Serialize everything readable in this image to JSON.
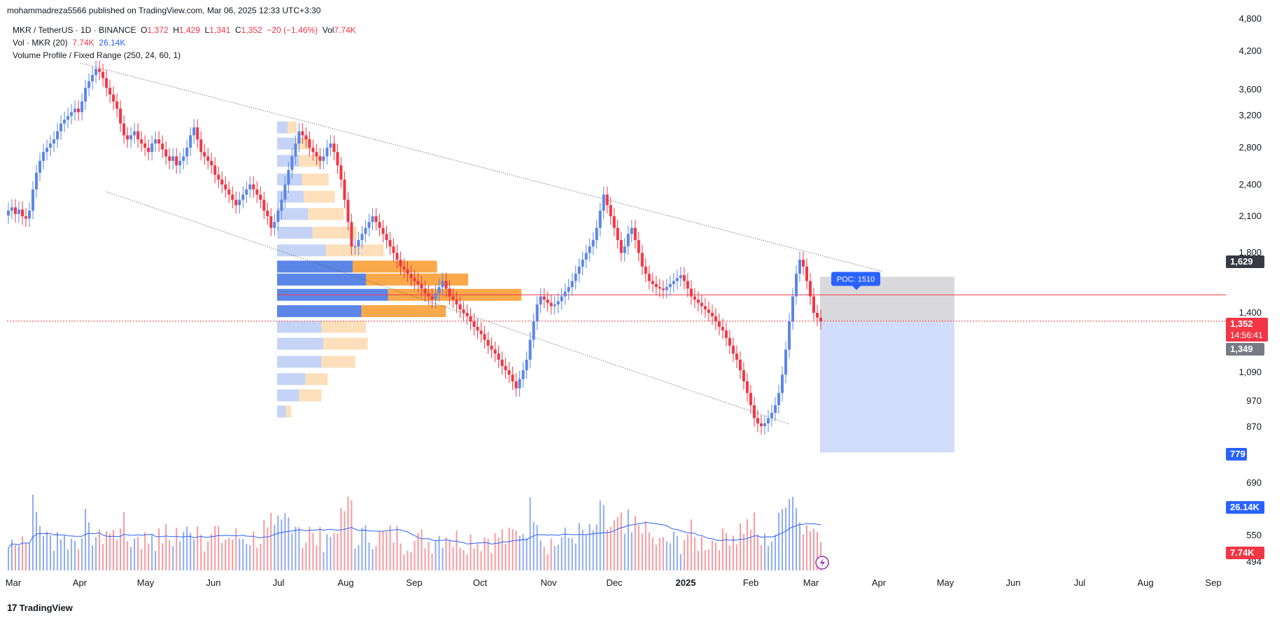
{
  "header": {
    "published": "mohammadreza5566 published on TradingView.com, Mar 06, 2025 12:33 UTC+3:30"
  },
  "legend": {
    "symbol": "MKR / TetherUS · 1D · BINANCE",
    "o_label": "O",
    "o": "1,372",
    "h_label": "H",
    "h": "1,429",
    "l_label": "L",
    "l": "1,341",
    "c_label": "C",
    "c": "1,352",
    "change": "−20 (−1.46%)",
    "vol_label": "Vol",
    "vol": "7.74K",
    "vol_study": "Vol · MKR (20)",
    "vol_study_v1": "7.74K",
    "vol_study_v2": "26.14K",
    "vp_study": "Volume Profile / Fixed Range (250, 24, 60, 1)"
  },
  "footer": {
    "brand": "TradingView",
    "logo": "17"
  },
  "chart_data": {
    "type": "candlestick",
    "price_scale": "log",
    "ylim": [
      460,
      4900
    ],
    "y_ticks": [
      "4,800",
      "4,200",
      "3,600",
      "3,200",
      "2,800",
      "2,400",
      "2,100",
      "1,800",
      "1,400",
      "1,090",
      "970",
      "870",
      "690",
      "550",
      "494"
    ],
    "x_ticks": [
      "Mar",
      "Apr",
      "May",
      "Jun",
      "Jul",
      "Aug",
      "Sep",
      "Oct",
      "Nov",
      "Dec",
      "2025",
      "Feb",
      "Mar",
      "Apr",
      "May",
      "Jun",
      "Jul",
      "Aug",
      "Sep"
    ],
    "price_labels": [
      {
        "text": "1,629",
        "color": "#363a45"
      },
      {
        "text": "1,352",
        "sub": "14:56:41",
        "color": "#f23645"
      },
      {
        "text": "1,349",
        "color": "#787b86"
      },
      {
        "text": "779",
        "color": "#2962ff"
      },
      {
        "text": "26.14K",
        "color": "#2962ff"
      },
      {
        "text": "7.74K",
        "color": "#f23645"
      }
    ],
    "poc_label": "POC: 1510",
    "poc_price": 1510,
    "last_price": 1352,
    "target_zone": {
      "top": 1629,
      "entry": 1349,
      "bottom": 779
    },
    "closes": [
      2150,
      2180,
      2120,
      2160,
      2100,
      2080,
      2150,
      2350,
      2520,
      2650,
      2750,
      2800,
      2850,
      2900,
      3000,
      3100,
      3150,
      3200,
      3250,
      3300,
      3250,
      3400,
      3600,
      3700,
      3800,
      3900,
      3850,
      3750,
      3600,
      3500,
      3400,
      3300,
      3100,
      2950,
      2900,
      2950,
      3000,
      2900,
      2850,
      2800,
      2750,
      2850,
      2900,
      2850,
      2780,
      2700,
      2650,
      2700,
      2600,
      2650,
      2700,
      2800,
      2950,
      3050,
      2900,
      2750,
      2700,
      2650,
      2600,
      2500,
      2450,
      2400,
      2350,
      2300,
      2250,
      2200,
      2250,
      2300,
      2350,
      2400,
      2350,
      2300,
      2250,
      2150,
      2100,
      2000,
      2050,
      2150,
      2250,
      2400,
      2550,
      2700,
      2850,
      3000,
      2950,
      2900,
      2800,
      2750,
      2700,
      2650,
      2700,
      2800,
      2850,
      2750,
      2600,
      2450,
      2250,
      2050,
      1850,
      1850,
      1900,
      1950,
      2000,
      2050,
      2100,
      2050,
      2000,
      1950,
      1900,
      1850,
      1800,
      1750,
      1700,
      1680,
      1650,
      1620,
      1600,
      1580,
      1550,
      1520,
      1500,
      1480,
      1520,
      1560,
      1600,
      1550,
      1500,
      1480,
      1450,
      1420,
      1400,
      1380,
      1350,
      1320,
      1300,
      1280,
      1250,
      1220,
      1200,
      1180,
      1150,
      1120,
      1100,
      1080,
      1050,
      1020,
      1060,
      1100,
      1150,
      1250,
      1350,
      1450,
      1500,
      1480,
      1460,
      1440,
      1450,
      1470,
      1500,
      1530,
      1560,
      1600,
      1650,
      1700,
      1750,
      1800,
      1850,
      1900,
      2000,
      2150,
      2300,
      2200,
      2100,
      2000,
      1900,
      1800,
      1850,
      1950,
      2000,
      1900,
      1800,
      1700,
      1650,
      1600,
      1580,
      1560,
      1550,
      1540,
      1560,
      1580,
      1600,
      1620,
      1640,
      1600,
      1550,
      1500,
      1480,
      1460,
      1440,
      1420,
      1400,
      1380,
      1350,
      1320,
      1300,
      1260,
      1220,
      1180,
      1150,
      1100,
      1050,
      1000,
      950,
      900,
      880,
      870,
      880,
      900,
      920,
      950,
      1000,
      1080,
      1200,
      1350,
      1500,
      1650,
      1750,
      1700,
      1600,
      1500,
      1400,
      1372,
      1352
    ],
    "volume_profile": [
      {
        "price": 3050,
        "up": 12,
        "dn": 10
      },
      {
        "price": 2850,
        "up": 20,
        "dn": 18
      },
      {
        "price": 2650,
        "up": 25,
        "dn": 25
      },
      {
        "price": 2450,
        "up": 28,
        "dn": 30
      },
      {
        "price": 2280,
        "up": 30,
        "dn": 35
      },
      {
        "price": 2120,
        "up": 35,
        "dn": 40
      },
      {
        "price": 1960,
        "up": 40,
        "dn": 50
      },
      {
        "price": 1820,
        "up": 55,
        "dn": 65
      },
      {
        "price": 1700,
        "up": 85,
        "dn": 95
      },
      {
        "price": 1610,
        "up": 100,
        "dn": 115
      },
      {
        "price": 1510,
        "up": 125,
        "dn": 150
      },
      {
        "price": 1410,
        "up": 95,
        "dn": 95
      },
      {
        "price": 1320,
        "up": 50,
        "dn": 50
      },
      {
        "price": 1230,
        "up": 52,
        "dn": 50
      },
      {
        "price": 1140,
        "up": 50,
        "dn": 38
      },
      {
        "price": 1060,
        "up": 32,
        "dn": 25
      },
      {
        "price": 990,
        "up": 25,
        "dn": 25
      },
      {
        "price": 925,
        "up": 10,
        "dn": 6
      }
    ]
  }
}
